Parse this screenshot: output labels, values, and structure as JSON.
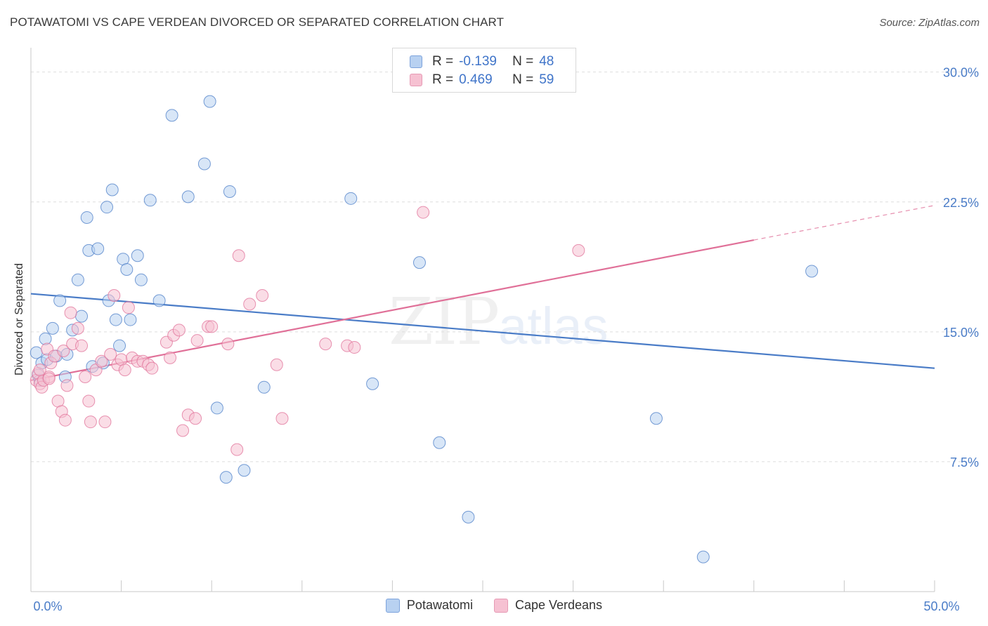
{
  "header": {
    "title": "POTAWATOMI VS CAPE VERDEAN DIVORCED OR SEPARATED CORRELATION CHART",
    "source": "Source: ZipAtlas.com"
  },
  "watermark": {
    "zip": "ZIP",
    "atlas": "atlas"
  },
  "legend": {
    "rows": [
      {
        "r_label": "R =",
        "r_value": "-0.139",
        "n_label": "N =",
        "n_value": "48",
        "color": "#b8d1f1"
      },
      {
        "r_label": "R =",
        "r_value": "0.469",
        "n_label": "N =",
        "n_value": "59",
        "color": "#f6c1d2"
      }
    ]
  },
  "chart_data": {
    "type": "scatter",
    "ylabel": "Divorced or Separated",
    "xlim": [
      0,
      50
    ],
    "ylim": [
      0,
      31
    ],
    "y_ticks": [
      {
        "value": 7.5,
        "label": "7.5%"
      },
      {
        "value": 15.0,
        "label": "15.0%"
      },
      {
        "value": 22.5,
        "label": "22.5%"
      },
      {
        "value": 30.0,
        "label": "30.0%"
      }
    ],
    "x_tick_labels": [
      {
        "value": 0,
        "label": "0.0%"
      },
      {
        "value": 50,
        "label": "50.0%"
      }
    ],
    "grid": true,
    "series": [
      {
        "name": "Potawatomi",
        "color": "#4a7cc7",
        "fill": "#b8d1f1",
        "trend": {
          "x": [
            0,
            50
          ],
          "y": [
            17.2,
            12.9
          ]
        },
        "points": [
          [
            0.3,
            13.8
          ],
          [
            0.4,
            12.5
          ],
          [
            0.5,
            12.2
          ],
          [
            0.6,
            13.2
          ],
          [
            0.8,
            14.6
          ],
          [
            0.9,
            13.4
          ],
          [
            1.2,
            15.2
          ],
          [
            1.4,
            13.6
          ],
          [
            1.6,
            16.8
          ],
          [
            1.9,
            12.4
          ],
          [
            2.0,
            13.7
          ],
          [
            2.3,
            15.1
          ],
          [
            2.6,
            18.0
          ],
          [
            2.8,
            15.9
          ],
          [
            3.1,
            21.6
          ],
          [
            3.2,
            19.7
          ],
          [
            3.4,
            13.0
          ],
          [
            3.7,
            19.8
          ],
          [
            4.0,
            13.2
          ],
          [
            4.2,
            22.2
          ],
          [
            4.3,
            16.8
          ],
          [
            4.5,
            23.2
          ],
          [
            4.7,
            15.7
          ],
          [
            4.9,
            14.2
          ],
          [
            5.1,
            19.2
          ],
          [
            5.3,
            18.6
          ],
          [
            5.5,
            15.7
          ],
          [
            5.9,
            19.4
          ],
          [
            6.1,
            18.0
          ],
          [
            6.6,
            22.6
          ],
          [
            7.1,
            16.8
          ],
          [
            7.8,
            27.5
          ],
          [
            8.7,
            22.8
          ],
          [
            9.6,
            24.7
          ],
          [
            9.9,
            28.3
          ],
          [
            10.3,
            10.6
          ],
          [
            10.8,
            6.6
          ],
          [
            11.0,
            23.1
          ],
          [
            11.8,
            7.0
          ],
          [
            12.9,
            11.8
          ],
          [
            17.7,
            22.7
          ],
          [
            18.9,
            12.0
          ],
          [
            21.5,
            19.0
          ],
          [
            22.6,
            8.6
          ],
          [
            24.2,
            4.3
          ],
          [
            34.6,
            10.0
          ],
          [
            37.2,
            2.0
          ],
          [
            43.2,
            18.5
          ]
        ]
      },
      {
        "name": "Cape Verdeans",
        "color": "#e07098",
        "fill": "#f6c1d2",
        "trend": {
          "x": [
            0,
            40
          ],
          "y": [
            12.2,
            20.3
          ]
        },
        "trend_dashed": {
          "x": [
            40,
            50
          ],
          "y": [
            20.3,
            22.3
          ]
        },
        "points": [
          [
            0.3,
            12.2
          ],
          [
            0.4,
            12.6
          ],
          [
            0.5,
            12.0
          ],
          [
            0.6,
            11.8
          ],
          [
            0.7,
            12.2
          ],
          [
            0.9,
            14.0
          ],
          [
            1.0,
            12.4
          ],
          [
            1.1,
            13.2
          ],
          [
            1.3,
            13.6
          ],
          [
            1.5,
            11.0
          ],
          [
            1.7,
            10.4
          ],
          [
            1.8,
            13.9
          ],
          [
            1.9,
            9.9
          ],
          [
            2.0,
            11.9
          ],
          [
            2.2,
            16.1
          ],
          [
            2.3,
            14.3
          ],
          [
            2.6,
            15.2
          ],
          [
            2.8,
            14.2
          ],
          [
            3.0,
            12.4
          ],
          [
            3.2,
            11.0
          ],
          [
            3.3,
            9.8
          ],
          [
            3.6,
            12.8
          ],
          [
            3.9,
            13.3
          ],
          [
            4.1,
            9.8
          ],
          [
            4.4,
            13.7
          ],
          [
            4.6,
            17.1
          ],
          [
            4.8,
            13.1
          ],
          [
            5.0,
            13.4
          ],
          [
            5.2,
            12.8
          ],
          [
            5.4,
            16.4
          ],
          [
            5.6,
            13.5
          ],
          [
            5.9,
            13.3
          ],
          [
            6.2,
            13.3
          ],
          [
            6.5,
            13.1
          ],
          [
            6.7,
            12.9
          ],
          [
            7.5,
            14.4
          ],
          [
            7.7,
            13.5
          ],
          [
            7.9,
            14.8
          ],
          [
            8.2,
            15.1
          ],
          [
            8.4,
            9.3
          ],
          [
            8.7,
            10.2
          ],
          [
            9.1,
            10.0
          ],
          [
            9.2,
            14.5
          ],
          [
            9.8,
            15.3
          ],
          [
            10.0,
            15.3
          ],
          [
            10.9,
            14.3
          ],
          [
            11.4,
            8.2
          ],
          [
            11.5,
            19.4
          ],
          [
            12.1,
            16.6
          ],
          [
            12.8,
            17.1
          ],
          [
            13.6,
            13.1
          ],
          [
            13.9,
            10.0
          ],
          [
            16.3,
            14.3
          ],
          [
            17.5,
            14.2
          ],
          [
            17.9,
            14.1
          ],
          [
            21.7,
            21.9
          ],
          [
            30.3,
            19.7
          ],
          [
            0.5,
            12.8
          ],
          [
            1.0,
            12.3
          ]
        ]
      }
    ]
  },
  "bottom_legend": [
    {
      "label": "Potawatomi",
      "fill": "#b8d1f1",
      "stroke": "#7da3dc"
    },
    {
      "label": "Cape Verdeans",
      "fill": "#f6c1d2",
      "stroke": "#e69ab4"
    }
  ]
}
